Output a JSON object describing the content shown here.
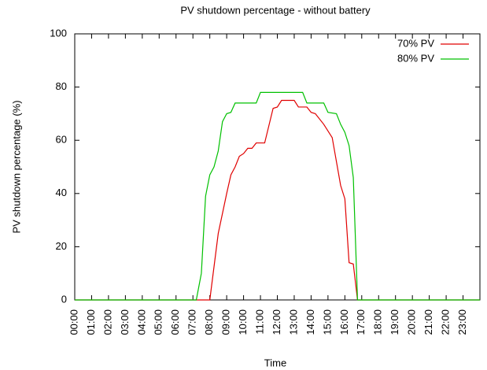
{
  "chart_data": {
    "type": "line",
    "title": "PV shutdown percentage - without battery",
    "xlabel": "Time",
    "ylabel": "PV shutdown percentage (%)",
    "xlim": [
      0,
      24
    ],
    "ylim": [
      0,
      100
    ],
    "xticks": [
      {
        "value": 0,
        "label": "00:00"
      },
      {
        "value": 1,
        "label": "01:00"
      },
      {
        "value": 2,
        "label": "02:00"
      },
      {
        "value": 3,
        "label": "03:00"
      },
      {
        "value": 4,
        "label": "04:00"
      },
      {
        "value": 5,
        "label": "05:00"
      },
      {
        "value": 6,
        "label": "06:00"
      },
      {
        "value": 7,
        "label": "07:00"
      },
      {
        "value": 8,
        "label": "08:00"
      },
      {
        "value": 9,
        "label": "09:00"
      },
      {
        "value": 10,
        "label": "10:00"
      },
      {
        "value": 11,
        "label": "11:00"
      },
      {
        "value": 12,
        "label": "12:00"
      },
      {
        "value": 13,
        "label": "13:00"
      },
      {
        "value": 14,
        "label": "14:00"
      },
      {
        "value": 15,
        "label": "15:00"
      },
      {
        "value": 16,
        "label": "16:00"
      },
      {
        "value": 17,
        "label": "17:00"
      },
      {
        "value": 18,
        "label": "18:00"
      },
      {
        "value": 19,
        "label": "19:00"
      },
      {
        "value": 20,
        "label": "20:00"
      },
      {
        "value": 21,
        "label": "21:00"
      },
      {
        "value": 22,
        "label": "22:00"
      },
      {
        "value": 23,
        "label": "23:00"
      }
    ],
    "yticks": [
      0,
      20,
      40,
      60,
      80,
      100
    ],
    "legend": "top-right",
    "series": [
      {
        "name": "70% PV",
        "color": "#e00000",
        "x": [
          0,
          8,
          8.5,
          9,
          9.25,
          9.5,
          9.75,
          10,
          10.25,
          10.5,
          10.75,
          11.25,
          11.75,
          12,
          12.25,
          13,
          13.25,
          13.75,
          14,
          14.25,
          14.75,
          15.25,
          15.75,
          16,
          16.25,
          16.5,
          16.75,
          24
        ],
        "values": [
          0,
          0,
          25,
          40,
          47,
          50,
          54,
          55,
          57,
          57,
          59,
          59,
          72,
          72.5,
          75,
          75,
          72.5,
          72.5,
          70.5,
          70,
          66,
          61,
          43,
          38,
          14,
          13.5,
          0,
          0
        ]
      },
      {
        "name": "80% PV",
        "color": "#00c000",
        "x": [
          0,
          7.2,
          7.5,
          7.75,
          8,
          8.25,
          8.5,
          8.75,
          9,
          9.25,
          9.5,
          10.75,
          11,
          13.5,
          13.75,
          14.75,
          15,
          15.5,
          15.75,
          16,
          16.25,
          16.5,
          16.75,
          24
        ],
        "values": [
          0,
          0,
          10,
          39,
          47,
          50,
          56,
          67,
          70,
          70.5,
          74,
          74,
          78,
          78,
          74,
          74,
          70.5,
          70,
          66,
          63,
          58,
          46,
          0,
          0
        ]
      }
    ]
  }
}
